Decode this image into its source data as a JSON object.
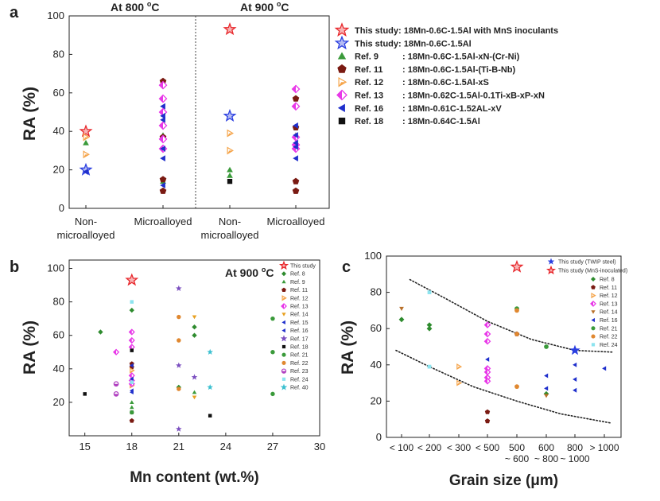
{
  "chart_data": [
    {
      "panel": "a",
      "type": "scatter",
      "ylabel": "RA (%)",
      "ylim": [
        0,
        100
      ],
      "yticks": [
        0,
        20,
        40,
        60,
        80,
        100
      ],
      "groups": [
        {
          "header": "At 800 °C",
          "categories": [
            "Non-\nmicroalloyed",
            "Microalloyed"
          ]
        },
        {
          "header": "At 900 °C",
          "categories": [
            "Non-\nmicroalloyed",
            "Microalloyed"
          ]
        }
      ],
      "series": [
        {
          "name": "This study: 18Mn-0.6C-1.5Al with MnS inoculants",
          "marker": "star-open",
          "color": "#e8272b",
          "points": [
            {
              "cat": 0,
              "v": 40
            },
            {
              "cat": 2,
              "v": 93
            }
          ]
        },
        {
          "name": "This study: 18Mn-0.6C-1.5Al",
          "marker": "star-open",
          "color": "#2b3fe0",
          "points": [
            {
              "cat": 0,
              "v": 20
            },
            {
              "cat": 2,
              "v": 48
            }
          ]
        },
        {
          "name": "Ref. 9",
          "comp": ": 18Mn-0.6C-1.5Al-xN-(Cr-Ni)",
          "marker": "triangle",
          "color": "#3a9a3a",
          "points": [
            {
              "cat": 0,
              "v": 34
            },
            {
              "cat": 1,
              "v": 38
            },
            {
              "cat": 1,
              "v": 14
            },
            {
              "cat": 2,
              "v": 20
            },
            {
              "cat": 2,
              "v": 17
            },
            {
              "cat": 3,
              "v": 38
            }
          ]
        },
        {
          "name": "Ref. 11",
          "comp": ": 18Mn-0.6C-1.5Al-(Ti-B-Nb)",
          "marker": "pentagon",
          "color": "#7a1a12",
          "points": [
            {
              "cat": 1,
              "v": 66
            },
            {
              "cat": 1,
              "v": 37
            },
            {
              "cat": 1,
              "v": 15
            },
            {
              "cat": 1,
              "v": 9
            },
            {
              "cat": 3,
              "v": 57
            },
            {
              "cat": 3,
              "v": 42
            },
            {
              "cat": 3,
              "v": 14
            },
            {
              "cat": 3,
              "v": 9
            }
          ]
        },
        {
          "name": "Ref. 12",
          "comp": ": 18Mn-0.6C-1.5Al-xS",
          "marker": "tri-right",
          "color": "#f5a44a",
          "points": [
            {
              "cat": 0,
              "v": 28
            },
            {
              "cat": 0,
              "v": 37
            },
            {
              "cat": 2,
              "v": 30
            },
            {
              "cat": 2,
              "v": 39
            }
          ]
        },
        {
          "name": "Ref. 13",
          "comp": ": 18Mn-0.62C-1.5Al-0.1Ti-xB-xP-xN",
          "marker": "diamond-half",
          "color": "#e838e8",
          "points": [
            {
              "cat": 1,
              "v": 64
            },
            {
              "cat": 1,
              "v": 57
            },
            {
              "cat": 1,
              "v": 50
            },
            {
              "cat": 1,
              "v": 43
            },
            {
              "cat": 1,
              "v": 36
            },
            {
              "cat": 1,
              "v": 31
            },
            {
              "cat": 3,
              "v": 62
            },
            {
              "cat": 3,
              "v": 53
            },
            {
              "cat": 3,
              "v": 37
            },
            {
              "cat": 3,
              "v": 33
            },
            {
              "cat": 3,
              "v": 31
            }
          ]
        },
        {
          "name": "Ref. 16",
          "comp": ": 18Mn-0.61C-1.52AL-xV",
          "marker": "tri-left",
          "color": "#1f2fcc",
          "points": [
            {
              "cat": 0,
              "v": 19
            },
            {
              "cat": 1,
              "v": 53
            },
            {
              "cat": 1,
              "v": 48
            },
            {
              "cat": 1,
              "v": 46
            },
            {
              "cat": 1,
              "v": 31
            },
            {
              "cat": 1,
              "v": 26
            },
            {
              "cat": 1,
              "v": 12
            },
            {
              "cat": 3,
              "v": 43
            },
            {
              "cat": 3,
              "v": 38
            },
            {
              "cat": 3,
              "v": 34
            },
            {
              "cat": 3,
              "v": 32
            },
            {
              "cat": 3,
              "v": 26
            }
          ]
        },
        {
          "name": "Ref. 18",
          "comp": ": 18Mn-0.64C-1.5Al",
          "marker": "square",
          "color": "#111111",
          "points": [
            {
              "cat": 2,
              "v": 14
            }
          ]
        }
      ]
    },
    {
      "panel": "b",
      "type": "scatter",
      "annotation": "At 900 °C",
      "xlabel": "Mn content (wt.%)",
      "ylabel": "RA (%)",
      "xlim": [
        14,
        30
      ],
      "ylim": [
        0,
        105
      ],
      "xticks": [
        15,
        18,
        21,
        24,
        27,
        30
      ],
      "yticks": [
        20,
        40,
        60,
        80,
        100
      ],
      "series": [
        {
          "name": "This study",
          "marker": "star-open",
          "color": "#e8272b",
          "points": [
            [
              18,
              93
            ]
          ]
        },
        {
          "name": "Ref. 8",
          "marker": "diamond",
          "color": "#2e8b2e",
          "points": [
            [
              16,
              62
            ],
            [
              18,
              75
            ],
            [
              22,
              65
            ],
            [
              22,
              60
            ],
            [
              21,
              29
            ]
          ]
        },
        {
          "name": "Ref. 9",
          "marker": "triangle",
          "color": "#3a9a3a",
          "points": [
            [
              18,
              20
            ],
            [
              18,
              17
            ],
            [
              22,
              26
            ]
          ]
        },
        {
          "name": "Ref. 11",
          "marker": "pentagon",
          "color": "#7a1a12",
          "points": [
            [
              18,
              9
            ],
            [
              18,
              43
            ],
            [
              18,
              41
            ]
          ]
        },
        {
          "name": "Ref. 12",
          "marker": "tri-right",
          "color": "#f5a44a",
          "points": [
            [
              18,
              30
            ],
            [
              18,
              39
            ]
          ]
        },
        {
          "name": "Ref. 13",
          "marker": "diamond-half",
          "color": "#e838e8",
          "points": [
            [
              18,
              62
            ],
            [
              18,
              57
            ],
            [
              18,
              53
            ],
            [
              18,
              36
            ],
            [
              18,
              33
            ],
            [
              18,
              31
            ],
            [
              17,
              50
            ]
          ]
        },
        {
          "name": "Ref. 14",
          "marker": "tri-down",
          "color": "#e8a020",
          "points": [
            [
              22,
              71
            ],
            [
              22,
              23
            ]
          ]
        },
        {
          "name": "Ref. 15",
          "marker": "tri-left",
          "color": "#1f2fcc",
          "points": [
            [
              18,
              42
            ],
            [
              18,
              27
            ],
            [
              18,
              26
            ]
          ]
        },
        {
          "name": "Ref. 16",
          "marker": "tri-left",
          "color": "#1f2fcc",
          "points": [
            [
              18,
              34
            ],
            [
              18,
              32
            ]
          ]
        },
        {
          "name": "Ref. 17",
          "marker": "star",
          "color": "#7b4fc0",
          "points": [
            [
              21,
              88
            ],
            [
              21,
              42
            ],
            [
              22,
              35
            ],
            [
              21,
              4
            ]
          ]
        },
        {
          "name": "Ref. 18",
          "marker": "square",
          "color": "#111111",
          "points": [
            [
              15,
              25
            ],
            [
              18,
              51
            ],
            [
              18,
              14
            ],
            [
              23,
              12
            ]
          ]
        },
        {
          "name": "Ref. 21",
          "marker": "circle",
          "color": "#3a9a3a",
          "points": [
            [
              27,
              70
            ],
            [
              27,
              50
            ],
            [
              27,
              25
            ],
            [
              18,
              14
            ]
          ]
        },
        {
          "name": "Ref. 22",
          "marker": "circle",
          "color": "#e08830",
          "points": [
            [
              21,
              71
            ],
            [
              21,
              57
            ],
            [
              21,
              28
            ]
          ]
        },
        {
          "name": "Ref. 23",
          "marker": "half-circle",
          "color": "#b040c0",
          "points": [
            [
              17,
              31
            ],
            [
              17,
              25
            ]
          ]
        },
        {
          "name": "Ref. 24",
          "marker": "square",
          "color": "#8de4ef",
          "points": [
            [
              18,
              80
            ],
            [
              18,
              32
            ]
          ]
        },
        {
          "name": "Ref. 40",
          "marker": "star",
          "color": "#3cc0d0",
          "points": [
            [
              23,
              50
            ],
            [
              23,
              29
            ]
          ]
        }
      ]
    },
    {
      "panel": "c",
      "type": "scatter",
      "xlabel": "Grain size (μm)",
      "ylabel": "RA (%)",
      "ylim": [
        0,
        100
      ],
      "yticks": [
        0,
        20,
        40,
        60,
        80,
        100
      ],
      "categories": [
        "< 100",
        "< 200",
        "< 300",
        "< 500",
        "500\n~ 600",
        "600\n~ 800",
        "800\n~ 1000",
        "> 1000"
      ],
      "series": [
        {
          "name": "This study (TWIP steel)",
          "marker": "star",
          "color": "#2b3fe0",
          "points": [
            [
              6,
              48
            ]
          ]
        },
        {
          "name": "This study (MnS-inoculated)",
          "marker": "star-open",
          "color": "#e8272b",
          "points": [
            [
              4,
              94
            ]
          ]
        },
        {
          "name": "Ref. 8",
          "marker": "diamond",
          "color": "#2e8b2e",
          "points": [
            [
              0,
              65
            ],
            [
              1,
              62
            ],
            [
              1,
              60
            ],
            [
              5,
              24
            ]
          ]
        },
        {
          "name": "Ref. 11",
          "marker": "pentagon",
          "color": "#7a1a12",
          "points": [
            [
              3,
              14
            ],
            [
              3,
              9
            ],
            [
              4,
              57
            ]
          ]
        },
        {
          "name": "Ref. 12",
          "marker": "tri-right",
          "color": "#f5a44a",
          "points": [
            [
              2,
              39
            ],
            [
              2,
              30
            ]
          ]
        },
        {
          "name": "Ref. 13",
          "marker": "diamond-half",
          "color": "#e838e8",
          "points": [
            [
              3,
              62
            ],
            [
              3,
              57
            ],
            [
              3,
              53
            ],
            [
              3,
              38
            ],
            [
              3,
              36
            ],
            [
              3,
              33
            ],
            [
              3,
              31
            ]
          ]
        },
        {
          "name": "Ref. 14",
          "marker": "tri-down",
          "color": "#b8702a",
          "points": [
            [
              0,
              71
            ],
            [
              5,
              23
            ]
          ]
        },
        {
          "name": "Ref. 16",
          "marker": "tri-left",
          "color": "#1f2fcc",
          "points": [
            [
              3,
              43
            ],
            [
              5,
              34
            ],
            [
              5,
              27
            ],
            [
              6,
              40
            ],
            [
              6,
              32
            ],
            [
              6,
              26
            ],
            [
              7,
              38
            ]
          ]
        },
        {
          "name": "Ref. 21",
          "marker": "circle",
          "color": "#3a9a3a",
          "points": [
            [
              4,
              71
            ],
            [
              5,
              50
            ]
          ]
        },
        {
          "name": "Ref. 22",
          "marker": "circle",
          "color": "#e08830",
          "points": [
            [
              4,
              70
            ],
            [
              4,
              57
            ],
            [
              4,
              28
            ]
          ]
        },
        {
          "name": "Ref. 24",
          "marker": "square",
          "color": "#8de4ef",
          "points": [
            [
              1,
              80
            ],
            [
              1,
              39
            ]
          ]
        }
      ],
      "trend_lines": [
        "upper",
        "lower"
      ]
    }
  ],
  "labels": {
    "panel_a": "a",
    "panel_b": "b",
    "panel_c": "c",
    "header_800": "At 800 ",
    "header_800_sup": "o",
    "header_800_unit": "C",
    "header_900": "At 900 ",
    "header_900_sup": "o",
    "header_900_unit": "C",
    "b_annot": "At 900 ",
    "b_annot_sup": "o",
    "b_annot_unit": "C",
    "cat_non_1": "Non-",
    "cat_non_2": "microalloyed",
    "cat_micro": "Microalloyed"
  }
}
